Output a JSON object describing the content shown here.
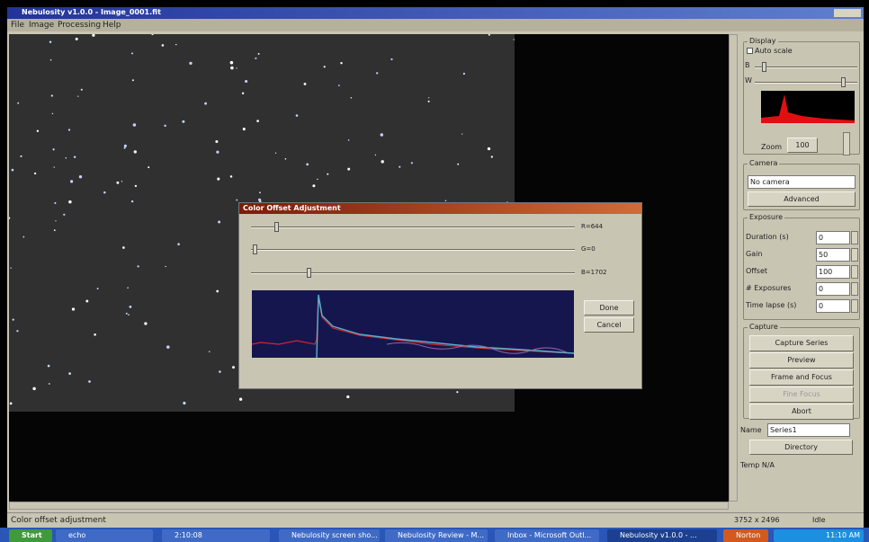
{
  "window": {
    "title": "Nebulosity v1.0.0 - Image_0001.fit",
    "menu": [
      "File",
      "Image",
      "Processing",
      "Help"
    ]
  },
  "dialog": {
    "title": "Color Offset Adjustment",
    "sliders": [
      "R=644",
      "G=0",
      "B=1702"
    ],
    "buttons": [
      "Done",
      "Cancel"
    ]
  },
  "panel": {
    "display": {
      "heading": "Display",
      "auto_scale": "Auto scale",
      "b": "B",
      "w": "W",
      "zoom_label": "Zoom",
      "zoom": "100"
    },
    "camera": {
      "heading": "Camera",
      "select": "No camera",
      "advanced": "Advanced"
    },
    "exposure": {
      "heading": "Exposure",
      "fields": [
        {
          "label": "Duration (s)",
          "value": "0"
        },
        {
          "label": "Gain",
          "value": "50"
        },
        {
          "label": "Offset",
          "value": "100"
        },
        {
          "label": "# Exposures",
          "value": "0"
        },
        {
          "label": "Time lapse (s)",
          "value": "0"
        }
      ]
    },
    "capture": {
      "heading": "Capture",
      "buttons": [
        "Capture Series",
        "Preview",
        "Frame and Focus",
        "Fine Focus",
        "Abort"
      ]
    },
    "name_label": "Name",
    "name": "Series1",
    "directory": "Directory",
    "temp": "Temp N/A"
  },
  "status": {
    "message": "Color offset adjustment",
    "size": "3752 x 2496",
    "state": "Idle"
  },
  "taskbar": {
    "start": "Start",
    "items": [
      "echo",
      "2:10:08",
      "Nebulosity screen sho...",
      "Nebulosity Review - M...",
      "Inbox - Microsoft Outl...",
      "Nebulosity v1.0.0 - ..."
    ],
    "tray": "Norton",
    "clock": "11:10 AM"
  }
}
